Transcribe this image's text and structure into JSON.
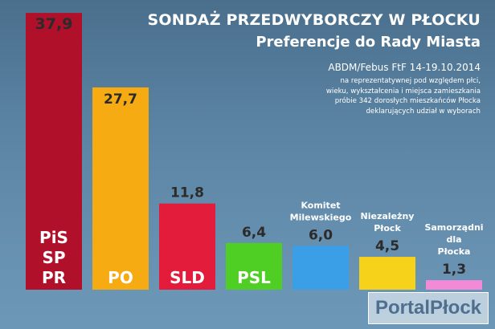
{
  "header": {
    "title": "SONDAŻ PRZEDWYBORCZY W PŁOCKU",
    "subtitle": "Preferencje do Rady Miasta",
    "source": "ABDM/Febus FtF 14-19.10.2014",
    "note_lines": [
      "na reprezentatywnej pod względem płci,",
      "wieku, wykształcenia i miejsca zamieszkania",
      "próbie 342 dorosłych mieszkańców Płocka",
      "deklarujących udział w wyborach"
    ]
  },
  "logo": {
    "text": "PortalPłock"
  },
  "chart_data": {
    "type": "bar",
    "categories": [
      "PiS SP PR",
      "PO",
      "SLD",
      "PSL",
      "Komitet Milewskiego",
      "Niezależny Płock",
      "Samorządni dla Płocka"
    ],
    "values": [
      37.9,
      27.7,
      11.8,
      6.4,
      6.0,
      4.5,
      1.3
    ],
    "value_labels": [
      "37,9",
      "27,7",
      "11,8",
      "6,4",
      "6,0",
      "4,5",
      "1,3"
    ],
    "category_label_lines": [
      [
        "PiS",
        "SP",
        "PR"
      ],
      [
        "PO"
      ],
      [
        "SLD"
      ],
      [
        "PSL"
      ],
      [
        "Komitet",
        "Milewskiego"
      ],
      [
        "Niezależny",
        "Płock"
      ],
      [
        "Samorządni",
        "dla",
        "Płocka"
      ]
    ],
    "colors": [
      "#b0102a",
      "#f7ab12",
      "#e31c3b",
      "#4fcf23",
      "#3b9fe8",
      "#f6d21b",
      "#f28ad8"
    ],
    "ylim": [
      0,
      40
    ],
    "grid": false,
    "legend": "none",
    "title": "SONDAŻ PRZEDWYBORCZY W PŁOCKU"
  }
}
